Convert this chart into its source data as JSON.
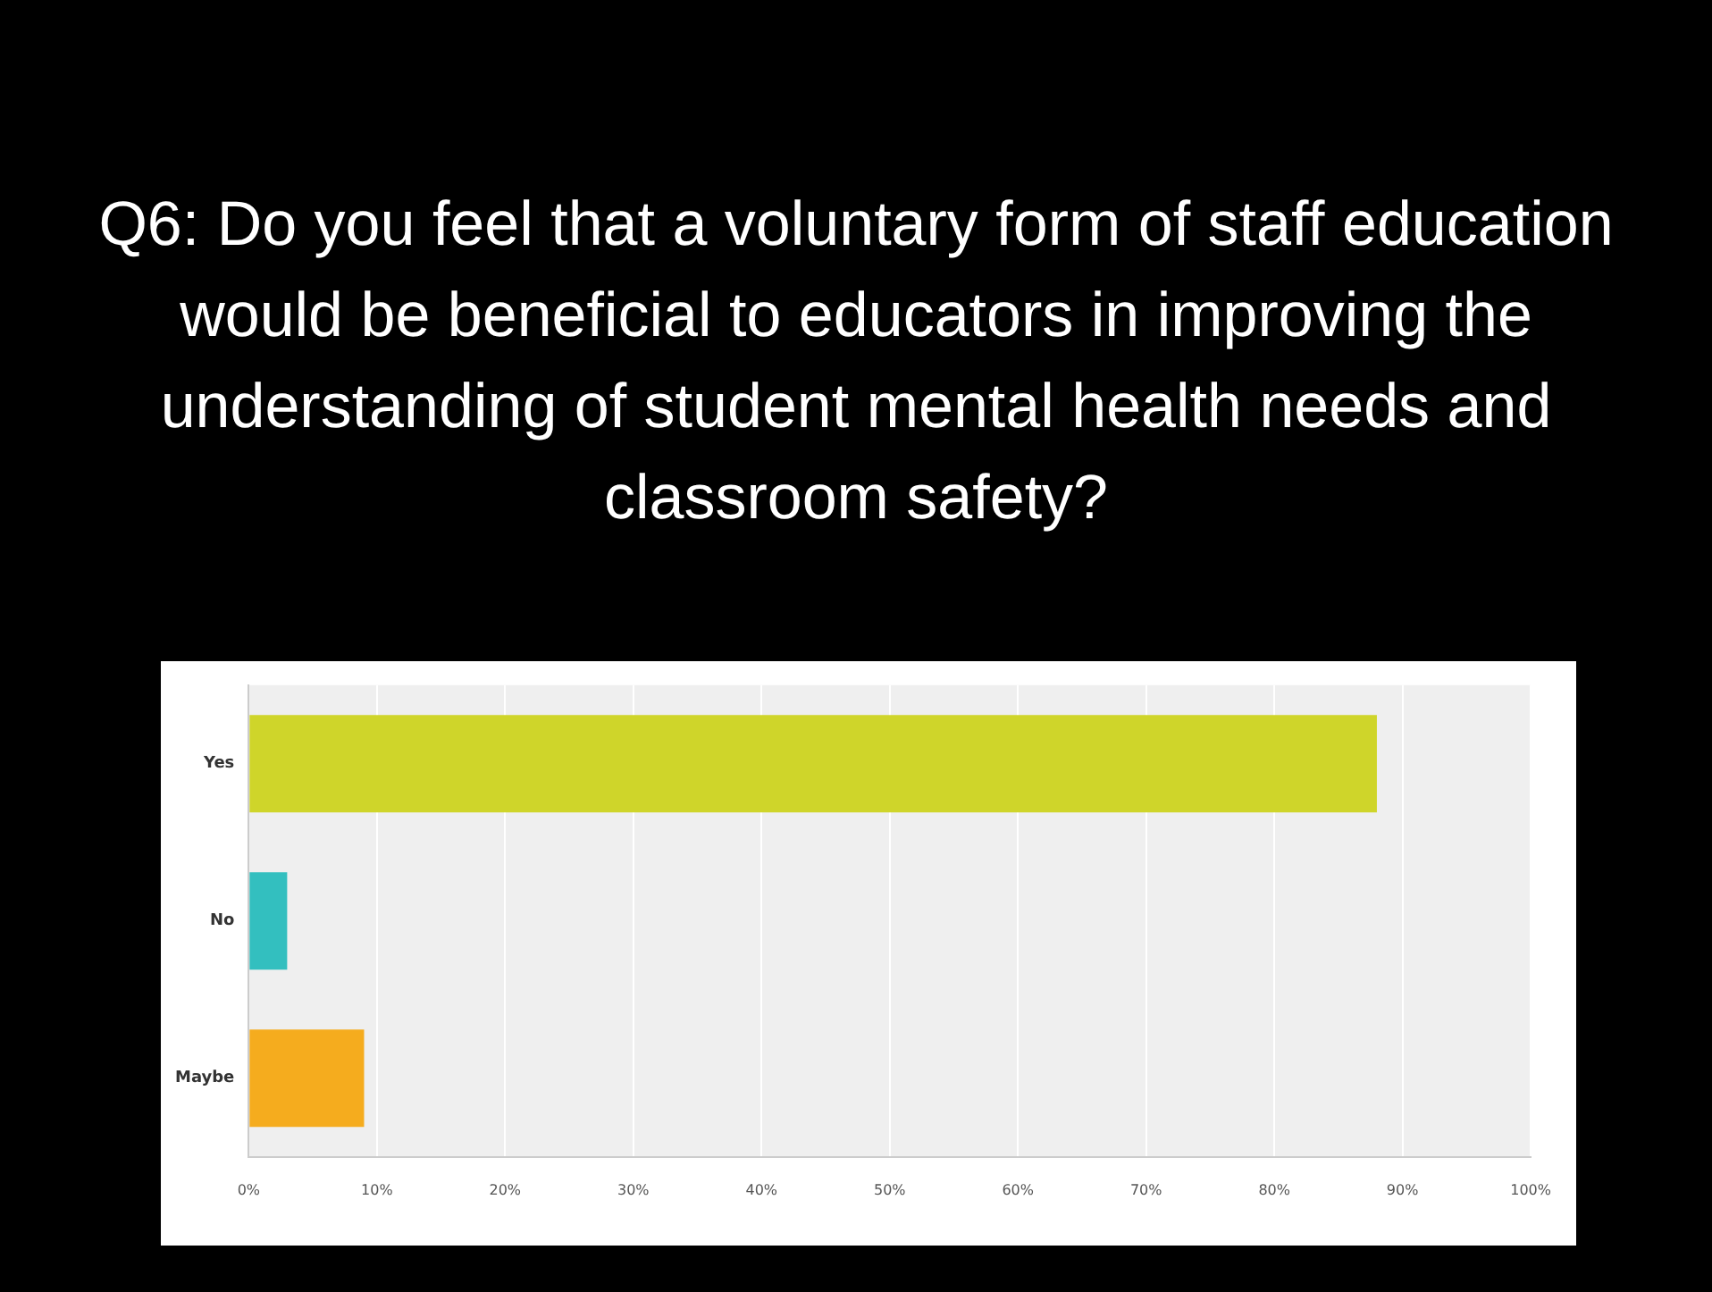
{
  "chart_data": {
    "type": "bar",
    "orientation": "horizontal",
    "title": "Q6: Do you feel that a voluntary form of staff education would be beneficial to educators in improving the understanding of student mental health needs and classroom safety?",
    "categories": [
      "Yes",
      "No",
      "Maybe"
    ],
    "values": [
      88,
      3,
      9
    ],
    "colors": [
      "#cfd52a",
      "#33bfbf",
      "#f5ac1e"
    ],
    "xlim": [
      0,
      100
    ],
    "xticks": [
      {
        "value": 0,
        "label": "0%"
      },
      {
        "value": 10,
        "label": "10%"
      },
      {
        "value": 20,
        "label": "20%"
      },
      {
        "value": 30,
        "label": "30%"
      },
      {
        "value": 40,
        "label": "40%"
      },
      {
        "value": 50,
        "label": "50%"
      },
      {
        "value": 60,
        "label": "60%"
      },
      {
        "value": 70,
        "label": "70%"
      },
      {
        "value": 80,
        "label": "80%"
      },
      {
        "value": 90,
        "label": "90%"
      },
      {
        "value": 100,
        "label": "100%"
      }
    ],
    "grid": "x",
    "legend": false
  }
}
